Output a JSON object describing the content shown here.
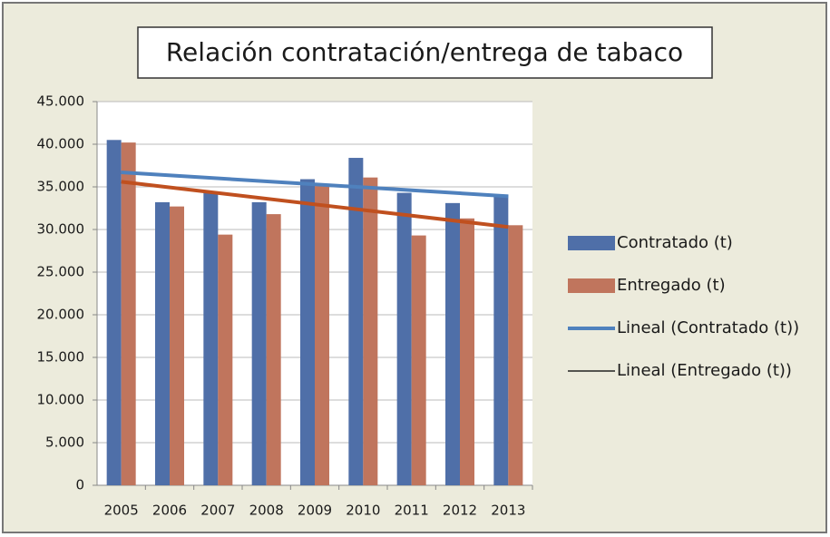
{
  "chart_data": {
    "type": "bar",
    "title": "Relación contratación/entrega de tabaco",
    "categories": [
      "2005",
      "2006",
      "2007",
      "2008",
      "2009",
      "2010",
      "2011",
      "2012",
      "2013"
    ],
    "series": [
      {
        "name": "Contratado (t)",
        "color": "#4f6fa8",
        "values": [
          40500,
          33200,
          34300,
          33200,
          35900,
          38400,
          34300,
          33100,
          34100
        ]
      },
      {
        "name": "Entregado (t)",
        "color": "#c0755d",
        "values": [
          40200,
          32700,
          29400,
          31800,
          35100,
          36100,
          29300,
          31300,
          30500
        ]
      }
    ],
    "trendlines": [
      {
        "name": "Lineal (Contratado (t))",
        "color": "#4f81bd",
        "legend_color": "#4f81bd",
        "values": [
          36700,
          33900
        ]
      },
      {
        "name": "Lineal (Entregado (t))",
        "color": "#c0501f",
        "legend_color": "#222222",
        "values": [
          35600,
          30300
        ]
      }
    ],
    "ylim": [
      0,
      45000
    ],
    "yticks": [
      0,
      {
        "value": 5000,
        "label": "5.000"
      },
      {
        "value": 10000,
        "label": "10.000"
      },
      {
        "value": 15000,
        "label": "15.000"
      },
      {
        "value": 20000,
        "label": "20.000"
      },
      {
        "value": 25000,
        "label": "25.000"
      },
      {
        "value": 30000,
        "label": "30.000"
      },
      {
        "value": 35000,
        "label": "35.000"
      },
      {
        "value": 40000,
        "label": "40.000"
      },
      {
        "value": 45000,
        "label": "45.000"
      }
    ],
    "grid": true
  }
}
